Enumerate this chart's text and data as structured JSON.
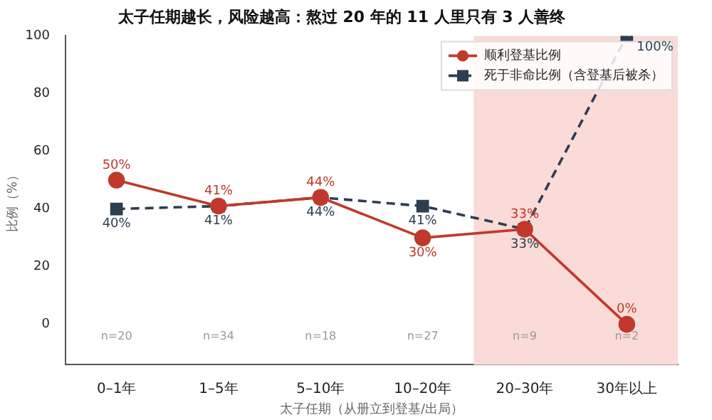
{
  "chart_data": {
    "type": "line",
    "title": "太子任期越长，风险越高：熬过 20 年的 11 人里只有 3 人善终",
    "xlabel": "太子任期（从册立到登基/出局）",
    "ylabel": "比例（%）",
    "categories": [
      "0–1年",
      "1–5年",
      "5–10年",
      "10–20年",
      "20–30年",
      "30年以上"
    ],
    "series": [
      {
        "name": "顺利登基比例",
        "color": "#c0392b",
        "marker": "circle",
        "line_style": "solid",
        "values": [
          50,
          41,
          44,
          30,
          33,
          0
        ],
        "value_labels": [
          "50%",
          "41%",
          "44%",
          "30%",
          "33%",
          "0%"
        ]
      },
      {
        "name": "死于非命比例（含登基后被杀）",
        "color": "#2c3e50",
        "marker": "square",
        "line_style": "dashed",
        "values": [
          40,
          41,
          44,
          41,
          33,
          100
        ],
        "value_labels": [
          "40%",
          "41%",
          "44%",
          "41%",
          "33%",
          "100%"
        ]
      }
    ],
    "ylim": [
      -14,
      100
    ],
    "yticks": [
      0,
      20,
      40,
      60,
      80,
      100
    ],
    "grid": false,
    "legend": "top right",
    "bands": [
      {
        "axis": "x",
        "from": "20–30年",
        "to": "30年以上",
        "color": "#fadbd8"
      }
    ],
    "annotations": [
      "n=20",
      "n=34",
      "n=18",
      "n=27",
      "n=9",
      "n=2"
    ]
  }
}
